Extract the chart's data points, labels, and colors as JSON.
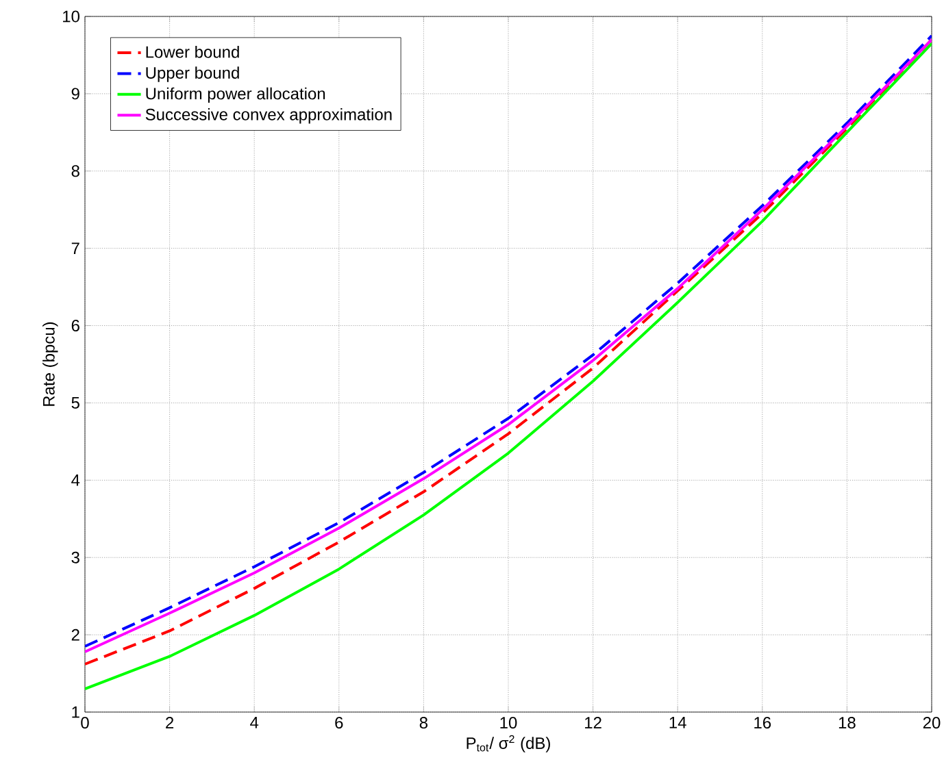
{
  "chart_data": {
    "type": "line",
    "xlabel": "P$_{tot}$/ σ$^{2}$ (dB)",
    "ylabel": "Rate (bpcu)",
    "x": [
      0,
      2,
      4,
      6,
      8,
      10,
      12,
      14,
      16,
      18,
      20
    ],
    "xlim": [
      0,
      20
    ],
    "ylim": [
      1,
      10
    ],
    "xticks": [
      0,
      2,
      4,
      6,
      8,
      10,
      12,
      14,
      16,
      18,
      20
    ],
    "yticks": [
      1,
      2,
      3,
      4,
      5,
      6,
      7,
      8,
      9,
      10
    ],
    "grid": true,
    "legend": "top left",
    "series": [
      {
        "name": "Lower bound",
        "color": "#ff0000",
        "line_style": "dashed",
        "values": [
          1.62,
          2.05,
          2.6,
          3.2,
          3.85,
          4.6,
          5.45,
          6.45,
          7.45,
          8.55,
          9.7
        ]
      },
      {
        "name": "Upper bound",
        "color": "#0000ff",
        "line_style": "dashed",
        "values": [
          1.85,
          2.35,
          2.88,
          3.45,
          4.1,
          4.8,
          5.62,
          6.55,
          7.55,
          8.62,
          9.75
        ]
      },
      {
        "name": "Uniform power allocation",
        "color": "#00ff00",
        "line_style": "solid",
        "values": [
          1.3,
          1.72,
          2.25,
          2.85,
          3.55,
          4.35,
          5.28,
          6.3,
          7.35,
          8.5,
          9.65
        ]
      },
      {
        "name": "Successive convex approximation",
        "color": "#ff00ff",
        "line_style": "solid",
        "values": [
          1.78,
          2.28,
          2.8,
          3.38,
          4.02,
          4.72,
          5.55,
          6.48,
          7.5,
          8.58,
          9.7
        ]
      }
    ]
  }
}
